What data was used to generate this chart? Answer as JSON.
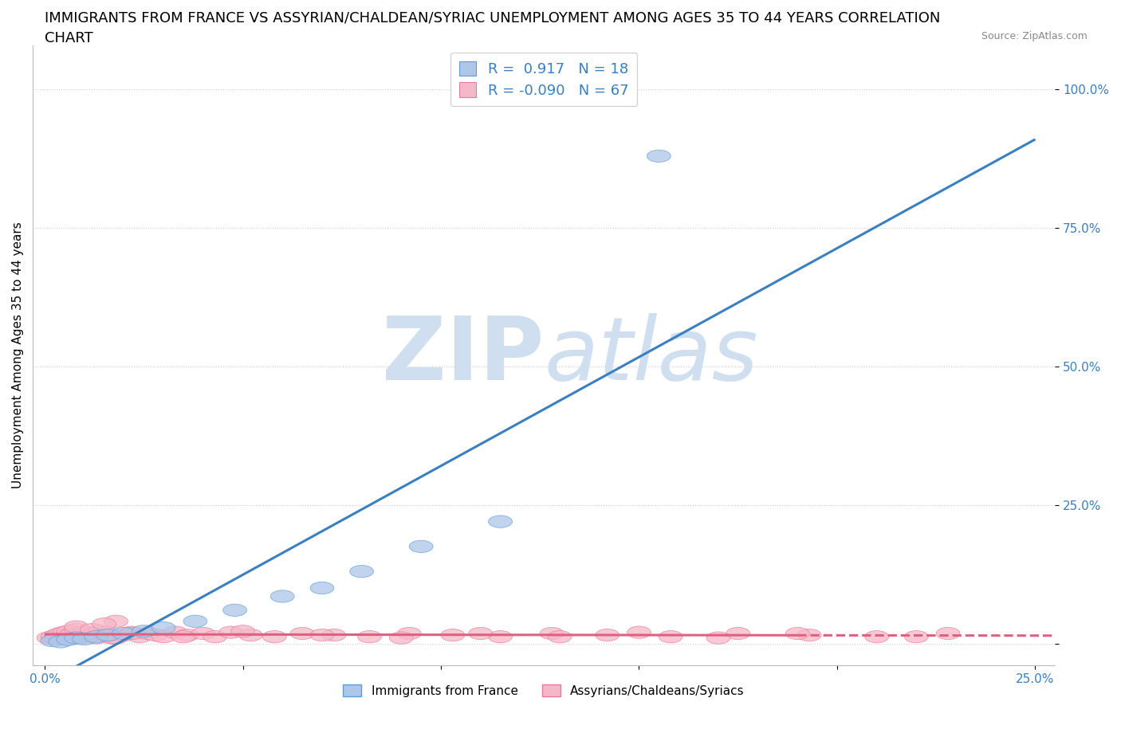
{
  "title_line1": "IMMIGRANTS FROM FRANCE VS ASSYRIAN/CHALDEAN/SYRIAC UNEMPLOYMENT AMONG AGES 35 TO 44 YEARS CORRELATION",
  "title_line2": "CHART",
  "source": "Source: ZipAtlas.com",
  "ylabel": "Unemployment Among Ages 35 to 44 years",
  "xlim": [
    -0.003,
    0.255
  ],
  "ylim": [
    -0.04,
    1.08
  ],
  "xtick_positions": [
    0.0,
    0.05,
    0.1,
    0.15,
    0.2,
    0.25
  ],
  "xtick_labels": [
    "0.0%",
    "",
    "",
    "",
    "",
    "25.0%"
  ],
  "ytick_positions": [
    0.0,
    0.25,
    0.5,
    0.75,
    1.0
  ],
  "ytick_labels": [
    "",
    "25.0%",
    "50.0%",
    "75.0%",
    "100.0%"
  ],
  "blue_R": 0.917,
  "blue_N": 18,
  "pink_R": -0.09,
  "pink_N": 67,
  "blue_color": "#aec6e8",
  "pink_color": "#f5b8c8",
  "blue_edge_color": "#5a9fd4",
  "pink_edge_color": "#e8799a",
  "blue_line_color": "#3a7fc1",
  "pink_line_color": "#e06080",
  "blue_x": [
    0.002,
    0.004,
    0.006,
    0.008,
    0.01,
    0.013,
    0.016,
    0.02,
    0.025,
    0.03,
    0.038,
    0.048,
    0.06,
    0.07,
    0.08,
    0.095,
    0.115,
    0.155
  ],
  "blue_y": [
    0.005,
    0.003,
    0.007,
    0.01,
    0.008,
    0.012,
    0.015,
    0.018,
    0.022,
    0.028,
    0.04,
    0.06,
    0.085,
    0.1,
    0.13,
    0.175,
    0.22,
    0.88
  ],
  "pink_x": [
    0.001,
    0.002,
    0.003,
    0.003,
    0.004,
    0.004,
    0.005,
    0.005,
    0.005,
    0.006,
    0.006,
    0.007,
    0.007,
    0.008,
    0.008,
    0.009,
    0.01,
    0.01,
    0.011,
    0.012,
    0.013,
    0.014,
    0.015,
    0.016,
    0.017,
    0.018,
    0.02,
    0.022,
    0.024,
    0.026,
    0.028,
    0.03,
    0.033,
    0.036,
    0.04,
    0.043,
    0.047,
    0.052,
    0.058,
    0.065,
    0.073,
    0.082,
    0.092,
    0.103,
    0.115,
    0.128,
    0.142,
    0.158,
    0.175,
    0.193,
    0.21,
    0.228,
    0.008,
    0.012,
    0.015,
    0.018,
    0.022,
    0.035,
    0.05,
    0.07,
    0.09,
    0.11,
    0.13,
    0.15,
    0.17,
    0.19,
    0.22
  ],
  "pink_y": [
    0.01,
    0.012,
    0.008,
    0.015,
    0.01,
    0.018,
    0.012,
    0.02,
    0.008,
    0.015,
    0.022,
    0.01,
    0.018,
    0.012,
    0.025,
    0.01,
    0.015,
    0.02,
    0.012,
    0.018,
    0.01,
    0.022,
    0.015,
    0.018,
    0.01,
    0.04,
    0.015,
    0.02,
    0.012,
    0.018,
    0.015,
    0.012,
    0.02,
    0.015,
    0.018,
    0.012,
    0.02,
    0.015,
    0.012,
    0.018,
    0.015,
    0.012,
    0.018,
    0.015,
    0.012,
    0.018,
    0.015,
    0.012,
    0.018,
    0.015,
    0.012,
    0.018,
    0.03,
    0.025,
    0.035,
    0.01,
    0.018,
    0.012,
    0.022,
    0.015,
    0.01,
    0.018,
    0.012,
    0.02,
    0.01,
    0.018,
    0.012
  ],
  "watermark_zip": "ZIP",
  "watermark_atlas": "atlas",
  "watermark_color": "#d0dff0",
  "legend_label_blue": "Immigrants from France",
  "legend_label_pink": "Assyrians/Chaldeans/Syriacs",
  "tick_color": "#3a7fc1",
  "title_fontsize": 13,
  "axis_label_fontsize": 11,
  "tick_fontsize": 11
}
